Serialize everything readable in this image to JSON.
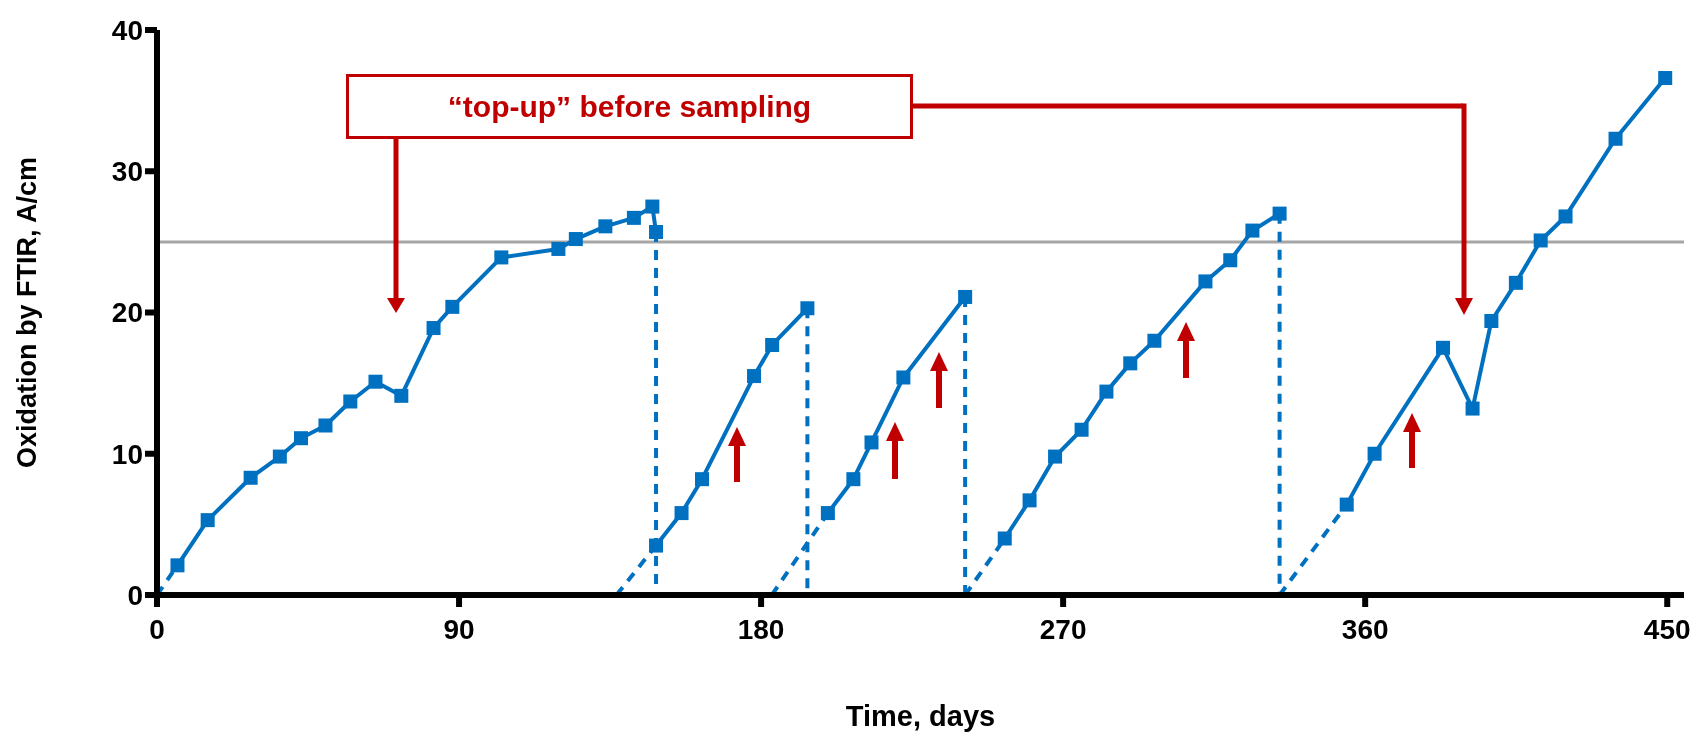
{
  "chart_data": {
    "type": "line",
    "xlabel": "Time, days",
    "ylabel": "Oxidation by FTIR, A/cm",
    "xlim": [
      0,
      455
    ],
    "xticks": [
      0,
      90,
      180,
      270,
      360,
      450
    ],
    "ylim": [
      0,
      40
    ],
    "yticks": [
      0,
      10,
      20,
      30,
      40
    ],
    "ref_lines": [
      {
        "axis": "y",
        "value": 25,
        "color": "#a6a6a6"
      }
    ],
    "annotations": [
      "“top-up” before sampling"
    ],
    "series": [
      {
        "color": "#0070c0",
        "marker": "square",
        "line_style": "solid",
        "x": [
          6.1,
          15.1,
          27.9,
          36.6,
          42.9,
          50.2,
          57.6,
          65.1,
          72.8,
          82.4,
          88.0,
          102.6,
          119.6,
          124.8,
          133.6,
          142.1,
          147.6,
          148.7
        ],
        "values": [
          2.1,
          5.3,
          8.3,
          9.8,
          11.1,
          12.0,
          13.7,
          15.1,
          14.1,
          18.9,
          20.4,
          23.9,
          24.5,
          25.2,
          26.1,
          26.7,
          27.5,
          25.7
        ]
      },
      {
        "color": "#0070c0",
        "marker": "square",
        "line_style": "solid",
        "x": [
          148.7,
          156.3,
          162.4,
          177.9,
          183.3,
          193.8
        ],
        "values": [
          3.5,
          5.8,
          8.2,
          15.5,
          17.7,
          20.3
        ]
      },
      {
        "color": "#0070c0",
        "marker": "square",
        "line_style": "solid",
        "x": [
          199.9,
          207.5,
          212.9,
          222.4,
          240.8
        ],
        "values": [
          5.8,
          8.2,
          10.8,
          15.4,
          21.1
        ]
      },
      {
        "color": "#0070c0",
        "marker": "square",
        "line_style": "solid",
        "x": [
          252.6,
          260.0,
          267.6,
          275.5,
          282.9,
          290.0,
          297.2,
          312.4,
          319.8,
          326.4,
          334.5
        ],
        "values": [
          4.0,
          6.7,
          9.8,
          11.7,
          14.4,
          16.4,
          18.0,
          22.2,
          23.7,
          25.8,
          27.0
        ]
      },
      {
        "color": "#0070c0",
        "marker": "square",
        "line_style": "solid",
        "x": [
          354.5,
          362.8,
          383.2,
          392.0,
          397.6,
          404.9,
          412.3,
          419.7,
          434.6,
          449.4
        ],
        "values": [
          6.4,
          10.0,
          17.5,
          13.2,
          19.4,
          22.1,
          25.1,
          26.8,
          32.3,
          36.6
        ]
      },
      {
        "color": "#0070c0",
        "marker": "none",
        "line_style": "dashed",
        "x": [
          0,
          6.1
        ],
        "values": [
          0,
          2.1
        ]
      },
      {
        "color": "#0070c0",
        "marker": "none",
        "line_style": "dashed",
        "x": [
          148.7,
          148.7
        ],
        "values": [
          25.7,
          0
        ]
      },
      {
        "color": "#0070c0",
        "marker": "none",
        "line_style": "dashed",
        "x": [
          136.9,
          148.7
        ],
        "values": [
          0,
          3.5
        ]
      },
      {
        "color": "#0070c0",
        "marker": "none",
        "line_style": "dashed",
        "x": [
          193.8,
          193.8
        ],
        "values": [
          20.3,
          0
        ]
      },
      {
        "color": "#0070c0",
        "marker": "none",
        "line_style": "dashed",
        "x": [
          183.2,
          199.9
        ],
        "values": [
          0,
          5.8
        ]
      },
      {
        "color": "#0070c0",
        "marker": "none",
        "line_style": "dashed",
        "x": [
          240.8,
          240.8
        ],
        "values": [
          21.1,
          0
        ]
      },
      {
        "color": "#0070c0",
        "marker": "none",
        "line_style": "dashed",
        "x": [
          240.8,
          252.6
        ],
        "values": [
          0,
          4.0
        ]
      },
      {
        "color": "#0070c0",
        "marker": "none",
        "line_style": "dashed",
        "x": [
          334.5,
          334.5
        ],
        "values": [
          27.0,
          0
        ]
      },
      {
        "color": "#0070c0",
        "marker": "none",
        "line_style": "dashed",
        "x": [
          334.5,
          354.5
        ],
        "values": [
          0,
          6.4
        ]
      }
    ]
  }
}
